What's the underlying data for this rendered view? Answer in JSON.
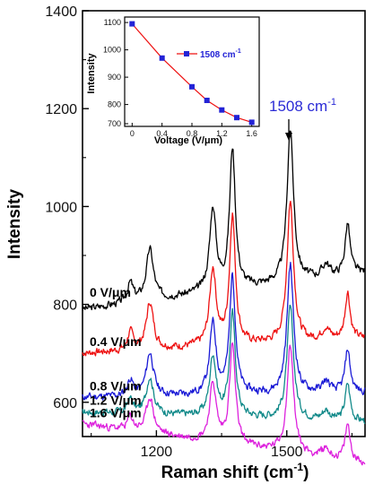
{
  "chart_data": [
    {
      "type": "line",
      "xlabel": "Raman shift (cm",
      "xlabel_sup": "-1",
      "xlabel_close": ")",
      "ylabel": "Intensity",
      "xlim": [
        1030,
        1680
      ],
      "ylim": [
        530,
        1400
      ],
      "x_ticks": [
        1200,
        1500
      ],
      "y_ticks": [
        600,
        800,
        1000,
        1200,
        1400
      ],
      "peak_annotation": {
        "x": 1508,
        "text": "1508 cm",
        "sup": "-1"
      },
      "peaks": [
        {
          "x": 1185,
          "w": 10,
          "h": 0.8
        },
        {
          "x": 1330,
          "w": 9,
          "h": 1.3
        },
        {
          "x": 1375,
          "w": 8,
          "h": 2.2
        },
        {
          "x": 1508,
          "w": 9,
          "h": 2.4
        },
        {
          "x": 1640,
          "w": 7,
          "h": 0.8
        },
        {
          "x": 1140,
          "w": 8,
          "h": 0.3
        },
        {
          "x": 1590,
          "w": 10,
          "h": 0.2
        }
      ],
      "series": [
        {
          "label": "0 V/μm",
          "color": "#000000",
          "baseline": 790,
          "scale": 130,
          "slope": 75,
          "seed": 3
        },
        {
          "label": "0.4 V/μm",
          "color": "#ee1111",
          "baseline": 700,
          "scale": 120,
          "slope": 30,
          "seed": 7
        },
        {
          "label": "0.8 V/μm",
          "color": "#1a1ad6",
          "baseline": 610,
          "scale": 110,
          "slope": 10,
          "seed": 11
        },
        {
          "label": "1.2 V/μm",
          "color": "#128a8a",
          "baseline": 580,
          "scale": 95,
          "slope": -20,
          "seed": 17
        },
        {
          "label": "1.6 V/μm",
          "color": "#dd22dd",
          "baseline": 555,
          "scale": 92,
          "slope": -80,
          "seed": 23
        }
      ]
    },
    {
      "type": "line",
      "xlabel": "Voltage (V/μm)",
      "ylabel": "Intensity",
      "xlim": [
        -0.1,
        1.7
      ],
      "ylim": [
        720,
        1120
      ],
      "x_ticks": [
        0,
        0.4,
        0.8,
        1.2,
        1.6
      ],
      "y_ticks": [
        700,
        800,
        900,
        1000,
        1100
      ],
      "x_tick_labels": [
        "0",
        "0.4",
        "0.8",
        "1.2",
        "1.6"
      ],
      "y_tick_labels": [
        "700",
        "800",
        "900",
        "1000",
        "1100"
      ],
      "legend": "1508 cm",
      "legend_sup": "-1",
      "series": [
        {
          "name": "1508 cm-1",
          "color": "#ee1111",
          "marker_color": "#2323d6",
          "x": [
            0,
            0.4,
            0.8,
            1.0,
            1.2,
            1.4,
            1.6
          ],
          "y": [
            1095,
            970,
            865,
            815,
            780,
            752,
            735
          ]
        }
      ]
    }
  ]
}
